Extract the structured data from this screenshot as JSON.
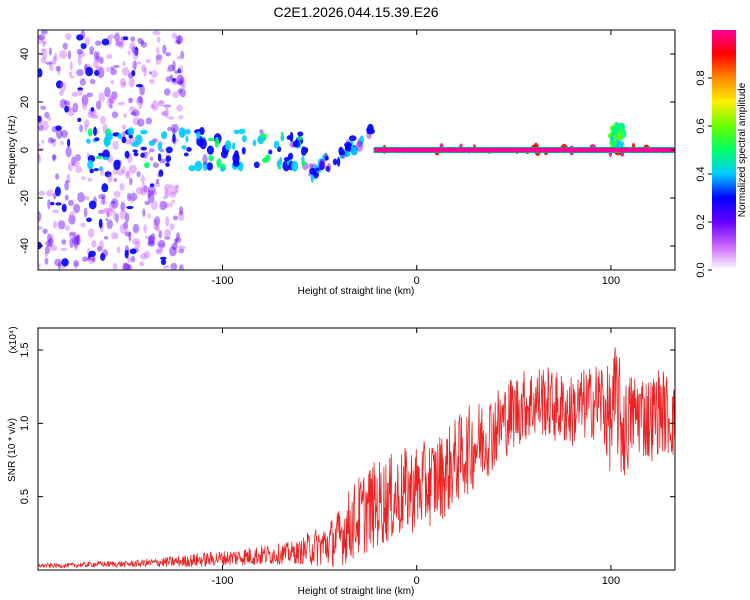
{
  "title": "C2E1.2026.044.15.39.E26",
  "chart_data": [
    {
      "type": "heatmap",
      "title": "C2E1.2026.044.15.39.E26",
      "xlabel": "Height of straight line (km)",
      "ylabel": "Frequency (Hz)",
      "xlim": [
        -195,
        133
      ],
      "ylim": [
        -50,
        50
      ],
      "xticks": [
        -100,
        0,
        100
      ],
      "xtick_labels": [
        "-100",
        "0",
        "100"
      ],
      "yticks": [
        -40,
        -20,
        0,
        20,
        40
      ],
      "ytick_labels": [
        "-40",
        "-20",
        "0",
        "20",
        "40"
      ],
      "colorbar": {
        "label": "Normalized spectral amplitude",
        "range": [
          0.0,
          1.0
        ],
        "ticks": [
          0.0,
          0.2,
          0.4,
          0.6,
          0.8
        ],
        "tick_labels": [
          "0.0",
          "0.2",
          "0.4",
          "0.6",
          "0.8"
        ],
        "colormap": [
          "#ffffff",
          "#cc66ff",
          "#6600ff",
          "#0000ff",
          "#00ccff",
          "#00ff66",
          "#66ff00",
          "#ffee00",
          "#ff8800",
          "#ff0000",
          "#ff0099"
        ]
      },
      "features": [
        {
          "x_range": [
            -195,
            -120
          ],
          "freq_range": [
            -50,
            50
          ],
          "amplitude": 0.15,
          "description": "broadband noise"
        },
        {
          "x_range": [
            -170,
            -55
          ],
          "freq_range": [
            -8,
            8
          ],
          "amplitude": 0.35,
          "description": "noisy band around 0 Hz"
        },
        {
          "x_range": [
            -55,
            -22
          ],
          "freq_range": [
            -12,
            12
          ],
          "amplitude": 0.3,
          "description": "diagonal transition band"
        },
        {
          "x_range": [
            -22,
            133
          ],
          "freq_range": [
            -1,
            1
          ],
          "amplitude": 0.95,
          "description": "stable line at 0 Hz"
        },
        {
          "x_range": [
            100,
            106
          ],
          "freq_range": [
            0,
            10
          ],
          "amplitude": 0.5,
          "description": "spike near 100 km"
        }
      ]
    },
    {
      "type": "line",
      "title": "",
      "xlabel": "Height of straight line (km)",
      "ylabel": "SNR (10 * v/v)",
      "y_multiplier": "(x10⁴)",
      "xlim": [
        -195,
        133
      ],
      "ylim": [
        0,
        1.65
      ],
      "xticks": [
        -100,
        0,
        100
      ],
      "xtick_labels": [
        "-100",
        "0",
        "100"
      ],
      "yticks": [
        0.5,
        1.0,
        1.5
      ],
      "ytick_labels": [
        "0.5",
        "1.0",
        "1.5"
      ],
      "series": [
        {
          "name": "SNR",
          "color": "#ee2222",
          "x": [
            -195,
            -180,
            -165,
            -150,
            -135,
            -120,
            -110,
            -100,
            -90,
            -80,
            -70,
            -60,
            -55,
            -50,
            -45,
            -40,
            -35,
            -30,
            -25,
            -20,
            -15,
            -10,
            -5,
            0,
            5,
            10,
            15,
            20,
            25,
            30,
            35,
            40,
            45,
            50,
            55,
            60,
            65,
            70,
            75,
            80,
            85,
            90,
            95,
            100,
            103,
            105,
            108,
            110,
            115,
            120,
            125,
            130,
            133
          ],
          "values": [
            0.03,
            0.03,
            0.04,
            0.04,
            0.05,
            0.06,
            0.07,
            0.08,
            0.09,
            0.1,
            0.11,
            0.12,
            0.15,
            0.16,
            0.18,
            0.22,
            0.3,
            0.36,
            0.42,
            0.45,
            0.48,
            0.5,
            0.54,
            0.56,
            0.58,
            0.62,
            0.66,
            0.74,
            0.8,
            0.85,
            0.9,
            0.96,
            1.02,
            1.08,
            1.12,
            1.14,
            1.16,
            1.12,
            1.1,
            1.08,
            1.12,
            1.14,
            1.16,
            1.0,
            1.2,
            1.0,
            0.95,
            1.05,
            1.08,
            1.02,
            1.1,
            1.05,
            1.0
          ],
          "spread": [
            0.015,
            0.015,
            0.02,
            0.02,
            0.03,
            0.04,
            0.05,
            0.05,
            0.06,
            0.07,
            0.07,
            0.08,
            0.12,
            0.14,
            0.16,
            0.2,
            0.25,
            0.28,
            0.3,
            0.3,
            0.3,
            0.3,
            0.3,
            0.3,
            0.3,
            0.3,
            0.3,
            0.3,
            0.3,
            0.3,
            0.28,
            0.28,
            0.26,
            0.26,
            0.25,
            0.25,
            0.25,
            0.25,
            0.25,
            0.25,
            0.25,
            0.25,
            0.3,
            0.35,
            0.42,
            0.4,
            0.35,
            0.3,
            0.3,
            0.3,
            0.3,
            0.28,
            0.25
          ]
        }
      ]
    }
  ]
}
